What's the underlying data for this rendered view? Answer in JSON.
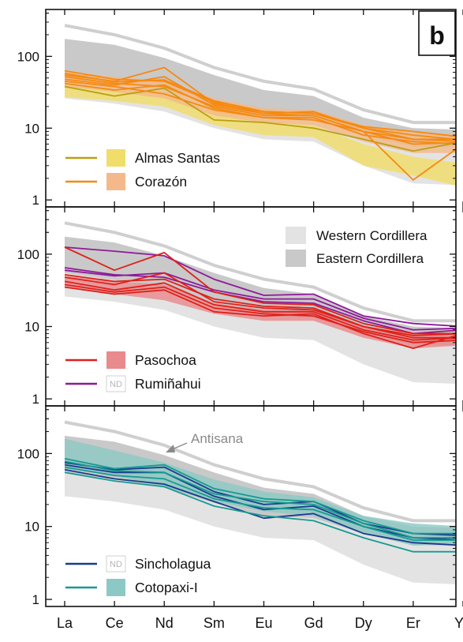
{
  "panel_label": "b",
  "colors": {
    "western_fill": "#e3e3e3",
    "eastern_fill": "#c9c9c9",
    "antisana": "#cfcfcf",
    "almas_line": "#b8a012",
    "almas_fill": "#f1dd6a",
    "corazon_line": "#f58a12",
    "corazon_fill": "#f3b98a",
    "pasochoa_line": "#e0201a",
    "pasochoa_fill": "#e98a8c",
    "rumi_line": "#8e1a98",
    "sinch_line": "#1a3a8e",
    "coto_line": "#169a90",
    "coto_fill": "#8dc9c4"
  },
  "chart_data": {
    "type": "line",
    "x": [
      "La",
      "Ce",
      "Nd",
      "Sm",
      "Eu",
      "Gd",
      "Dy",
      "Er",
      "Yb"
    ],
    "y_scale": "log",
    "ylim": [
      0.8,
      450
    ],
    "yticks": [
      1,
      10,
      100
    ],
    "background": {
      "western": {
        "lower": [
          26,
          22,
          17,
          10,
          7,
          6.5,
          3,
          1.7,
          1.6
        ],
        "upper": [
          80,
          62,
          48,
          29,
          18,
          16,
          10,
          7.5,
          7.2
        ]
      },
      "eastern": {
        "lower": [
          55,
          44,
          34,
          21,
          14,
          13,
          8,
          5.5,
          5.5
        ],
        "upper": [
          175,
          145,
          95,
          55,
          34,
          28,
          14,
          10,
          9.5
        ]
      },
      "antisana": {
        "values": [
          270,
          200,
          130,
          70,
          45,
          35,
          18,
          12,
          12
        ],
        "annotation": "Antisana"
      }
    },
    "legend_background": [
      {
        "label": "Western Cordillera"
      },
      {
        "label": "Eastern Cordillera"
      }
    ],
    "panels": [
      {
        "legend": [
          {
            "label": "Almas Santas",
            "series": "almas"
          },
          {
            "label": "Corazón",
            "series": "corazon"
          }
        ],
        "fields": [
          {
            "series": "almas",
            "lower": [
              27,
              24,
              20,
              11,
              8,
              7.5,
              3,
              2.2,
              1.5
            ],
            "upper": [
              40,
              35,
              30,
              19,
              13,
              11,
              6,
              4,
              3.2
            ]
          },
          {
            "series": "corazon",
            "lower": [
              38,
              32,
              26,
              15,
              12,
              11,
              6.5,
              4.5,
              4.5
            ],
            "upper": [
              62,
              52,
              45,
              26,
              19,
              18,
              11,
              9,
              8
            ]
          }
        ],
        "lines": [
          {
            "series": "almas",
            "values": [
              38,
              28,
              36,
              13,
              12,
              10,
              7,
              4.8,
              6.5
            ]
          },
          {
            "series": "corazon",
            "values": [
              55,
              45,
              70,
              22,
              17,
              16,
              10,
              7,
              7
            ]
          },
          {
            "series": "corazon",
            "values": [
              48,
              40,
              52,
              21,
              16,
              15,
              9,
              6,
              6.3
            ]
          },
          {
            "series": "corazon",
            "values": [
              63,
              48,
              45,
              23,
              16,
              17,
              10,
              8,
              6.8
            ]
          },
          {
            "series": "corazon",
            "values": [
              42,
              34,
              40,
              19,
              14,
              14,
              8,
              6.5,
              6
            ]
          },
          {
            "series": "corazon",
            "values": [
              45,
              38,
              30,
              18,
              14,
              13,
              9,
              1.9,
              6
            ]
          },
          {
            "series": "corazon",
            "values": [
              58,
              44,
              47,
              24,
              17,
              16,
              10.5,
              9,
              7.5
            ]
          },
          {
            "series": "corazon",
            "values": [
              52,
              42,
              38,
              20,
              15,
              15,
              9,
              7,
              6.5
            ]
          }
        ]
      },
      {
        "legend": [
          {
            "label": "Pasochoa",
            "series": "pasochoa"
          },
          {
            "label": "Rumiñahui",
            "series": "rumi",
            "badge": "ND"
          }
        ],
        "fields": [
          {
            "series": "pasochoa",
            "lower": [
              35,
              28,
              23,
              15,
              12,
              12,
              7,
              5,
              5.5
            ],
            "upper": [
              50,
              42,
              38,
              21,
              17,
              17,
              10,
              8,
              8
            ]
          }
        ],
        "lines": [
          {
            "series": "rumi",
            "values": [
              125,
              110,
              95,
              45,
              27,
              28,
              14,
              11,
              10
            ]
          },
          {
            "series": "rumi",
            "values": [
              65,
              52,
              48,
              30,
              22,
              21,
              12,
              8,
              9
            ]
          },
          {
            "series": "rumi",
            "values": [
              60,
              50,
              55,
              32,
              24,
              24,
              13,
              9,
              9.5
            ]
          },
          {
            "series": "pasochoa",
            "values": [
              125,
              60,
              105,
              30,
              21,
              20,
              11,
              8,
              8
            ]
          },
          {
            "series": "pasochoa",
            "values": [
              48,
              38,
              55,
              22,
              18,
              17,
              10,
              7,
              7
            ]
          },
          {
            "series": "pasochoa",
            "values": [
              42,
              32,
              40,
              20,
              16,
              16,
              9,
              6.5,
              7
            ]
          },
          {
            "series": "pasochoa",
            "values": [
              38,
              30,
              35,
              18,
              15,
              14,
              8.5,
              6,
              6.5
            ]
          },
          {
            "series": "pasochoa",
            "values": [
              52,
              42,
              45,
              24,
              19,
              18,
              10,
              7.5,
              8
            ]
          },
          {
            "series": "pasochoa",
            "values": [
              35,
              28,
              32,
              16,
              14,
              15,
              8,
              5,
              8
            ]
          }
        ]
      },
      {
        "legend": [
          {
            "label": "Sincholagua",
            "series": "sinch",
            "badge": "ND"
          },
          {
            "label": "Cotopaxi-I",
            "series": "coto"
          }
        ],
        "fields": [
          {
            "series": "coto",
            "lower": [
              62,
              50,
              35,
              22,
              16,
              14,
              8,
              5.5,
              6
            ],
            "upper": [
              160,
              110,
              75,
              44,
              30,
              25,
              14,
              11,
              10
            ]
          }
        ],
        "lines": [
          {
            "series": "sinch",
            "values": [
              60,
              45,
              38,
              22,
              13,
              15,
              8,
              6,
              5.5
            ]
          },
          {
            "series": "sinch",
            "values": [
              70,
              55,
              55,
              26,
              17,
              19,
              10,
              7,
              6.5
            ]
          },
          {
            "series": "sinch",
            "values": [
              75,
              60,
              65,
              30,
              20,
              22,
              11,
              8,
              7.5
            ]
          },
          {
            "series": "coto",
            "values": [
              85,
              62,
              70,
              33,
              24,
              22,
              12,
              8,
              8
            ]
          },
          {
            "series": "coto",
            "values": [
              65,
              50,
              45,
              24,
              18,
              17,
              10,
              6.5,
              6.5
            ]
          },
          {
            "series": "coto",
            "values": [
              55,
              42,
              35,
              19,
              14,
              12,
              7,
              4.5,
              4.5
            ]
          },
          {
            "series": "coto",
            "values": [
              78,
              58,
              55,
              28,
              22,
              20,
              11,
              7,
              7
            ]
          }
        ]
      }
    ]
  }
}
